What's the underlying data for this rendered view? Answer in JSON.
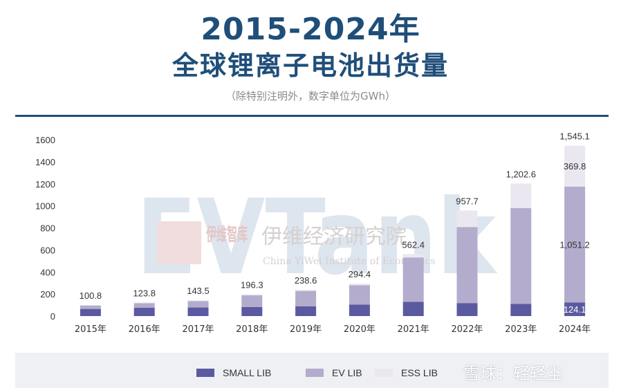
{
  "header": {
    "title_line1": "2015-2024年",
    "title_line2": "全球锂离子电池出货量",
    "subtitle": "（除特别注明外，数字单位为GWh）"
  },
  "colors": {
    "title": "#1f4e79",
    "small_lib": "#5b5aa0",
    "ev_lib": "#b3accd",
    "ess_lib": "#ebe7f1",
    "axis_text": "#333333"
  },
  "chart_data": {
    "type": "bar",
    "stacked": true,
    "categories": [
      "2015年",
      "2016年",
      "2017年",
      "2018年",
      "2019年",
      "2020年",
      "2021年",
      "2022年",
      "2023年",
      "2024年"
    ],
    "series": [
      {
        "name": "SMALL LIB",
        "values": [
          65,
          75,
          78,
          82,
          88,
          105,
          130,
          118,
          110,
          124.1
        ]
      },
      {
        "name": "EV LIB",
        "values": [
          30,
          42,
          58,
          106,
          140,
          175,
          402,
          690,
          870,
          1051.2
        ]
      },
      {
        "name": "ESS LIB",
        "values": [
          5.8,
          6.8,
          7.5,
          8.3,
          10.6,
          14.4,
          30.4,
          149.7,
          222.6,
          369.8
        ]
      }
    ],
    "totals": [
      100.8,
      123.8,
      143.5,
      196.3,
      238.6,
      294.4,
      562.4,
      957.7,
      1202.6,
      1545.1
    ],
    "total_labels": [
      "100.8",
      "123.8",
      "143.5",
      "196.3",
      "238.6",
      "294.4",
      "562.4",
      "957.7",
      "1,202.6",
      "1,545.1"
    ],
    "segment_labels_2024": {
      "SMALL LIB": "124.1",
      "EV LIB": "1,051.2",
      "ESS LIB": "369.8"
    },
    "y_ticks": [
      0,
      200,
      400,
      600,
      800,
      1000,
      1200,
      1400,
      1600
    ],
    "ylim": [
      0,
      1600
    ],
    "grid": false,
    "legend_position": "bottom"
  },
  "legend": {
    "items": [
      {
        "label": "SMALL LIB",
        "color": "#5b5aa0"
      },
      {
        "label": "EV LIB",
        "color": "#b3accd"
      },
      {
        "label": "ESS LIB",
        "color": "#ebe7f1"
      }
    ]
  },
  "watermark": {
    "brand": "EVTank",
    "logo_cn": "伊维智库",
    "institute_cn": "伊维经济研究院",
    "institute_en": "China YiWei Institute of Economics",
    "xueqiu": "雪球：轻轻尘"
  }
}
